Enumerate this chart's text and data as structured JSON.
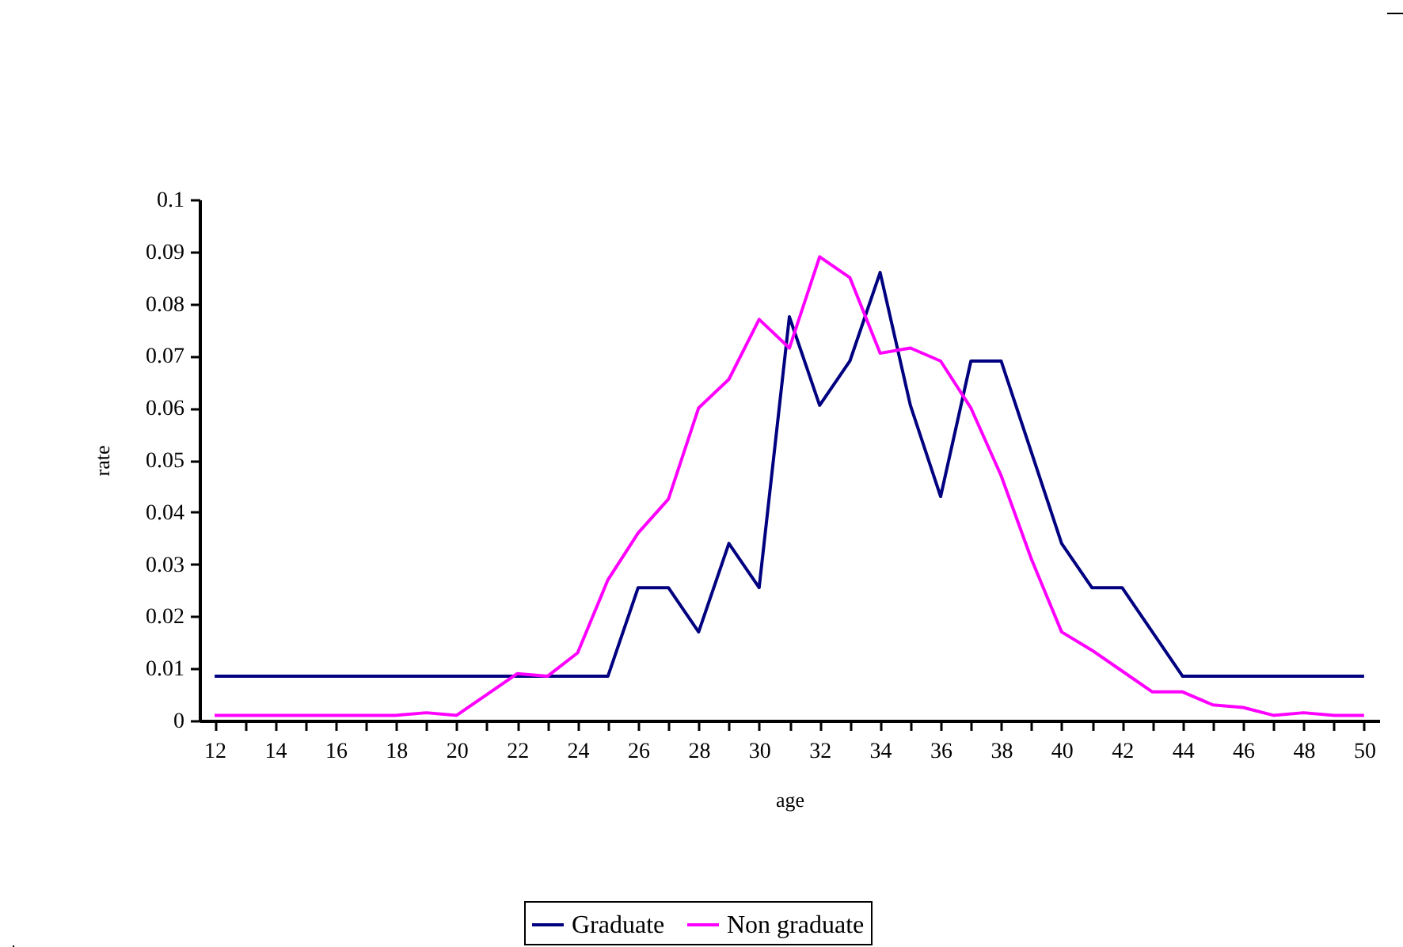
{
  "chart_data": {
    "type": "line",
    "xlabel": "age",
    "ylabel": "rate",
    "x": [
      12,
      13,
      14,
      15,
      16,
      17,
      18,
      19,
      20,
      21,
      22,
      23,
      24,
      25,
      26,
      27,
      28,
      29,
      30,
      31,
      32,
      33,
      34,
      35,
      36,
      37,
      38,
      39,
      40,
      41,
      42,
      43,
      44,
      45,
      46,
      47,
      48,
      49,
      50
    ],
    "series": [
      {
        "name": "Graduate",
        "color": "#000080",
        "values": [
          0.0085,
          0.0085,
          0.0085,
          0.0085,
          0.0085,
          0.0085,
          0.0085,
          0.0085,
          0.0085,
          0.0085,
          0.0085,
          0.0085,
          0.0085,
          0.0085,
          0.0255,
          0.0255,
          0.017,
          0.034,
          0.0255,
          0.0775,
          0.0605,
          0.069,
          0.086,
          0.0605,
          0.043,
          0.069,
          0.069,
          0.0515,
          0.034,
          0.0255,
          0.0255,
          0.017,
          0.0085,
          0.0085,
          0.0085,
          0.0085,
          0.0085,
          0.0085,
          0.0085
        ]
      },
      {
        "name": "Non graduate",
        "color": "#ff00ff",
        "values": [
          0.001,
          0.001,
          0.001,
          0.001,
          0.001,
          0.001,
          0.001,
          0.0015,
          0.001,
          0.005,
          0.009,
          0.0085,
          0.013,
          0.027,
          0.036,
          0.0425,
          0.06,
          0.0655,
          0.077,
          0.0715,
          0.089,
          0.085,
          0.0705,
          0.0715,
          0.069,
          0.06,
          0.047,
          0.031,
          0.017,
          0.0135,
          0.0095,
          0.0055,
          0.0055,
          0.003,
          0.0025,
          0.001,
          0.0015,
          0.001,
          0.001
        ]
      }
    ],
    "xlim": [
      11.5,
      50.5
    ],
    "xticks": [
      12,
      {
        "value": 13,
        "label": null
      },
      14,
      {
        "value": 15,
        "label": null
      },
      16,
      {
        "value": 17,
        "label": null
      },
      18,
      {
        "value": 19,
        "label": null
      },
      20,
      {
        "value": 21,
        "label": null
      },
      22,
      {
        "value": 23,
        "label": null
      },
      24,
      {
        "value": 25,
        "label": null
      },
      26,
      {
        "value": 27,
        "label": null
      },
      28,
      {
        "value": 29,
        "label": null
      },
      30,
      {
        "value": 31,
        "label": null
      },
      32,
      {
        "value": 33,
        "label": null
      },
      34,
      {
        "value": 35,
        "label": null
      },
      36,
      {
        "value": 37,
        "label": null
      },
      38,
      {
        "value": 39,
        "label": null
      },
      40,
      {
        "value": 41,
        "label": null
      },
      42,
      {
        "value": 43,
        "label": null
      },
      44,
      {
        "value": 45,
        "label": null
      },
      46,
      {
        "value": 47,
        "label": null
      },
      48,
      {
        "value": 49,
        "label": null
      },
      50
    ],
    "ylim": [
      0,
      0.1
    ],
    "yticks": [
      0,
      0.01,
      0.02,
      0.03,
      0.04,
      0.05,
      0.06,
      0.07,
      0.08,
      0.09,
      0.1
    ],
    "grid": false,
    "legend": "bottom",
    "marker": "none",
    "line_style": "solid"
  }
}
